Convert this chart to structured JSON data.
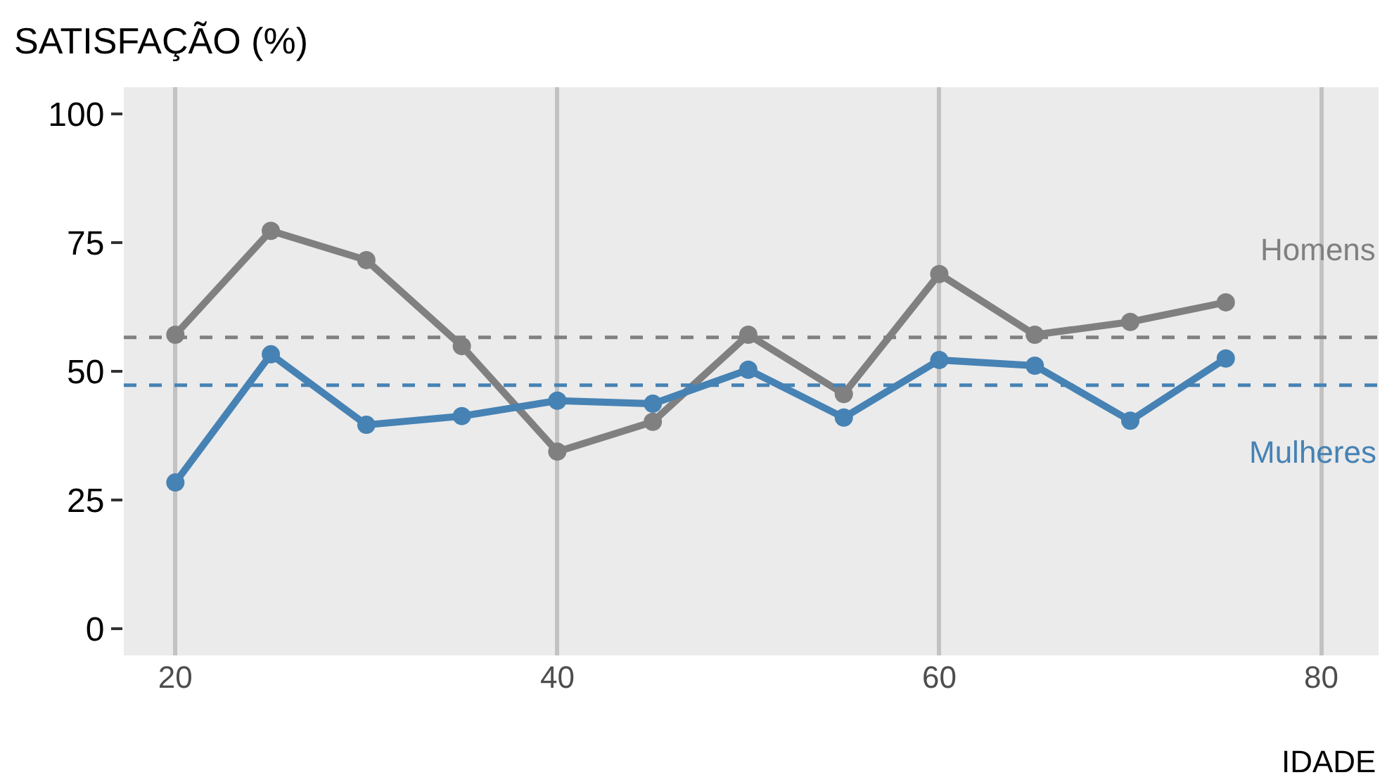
{
  "chart_data": {
    "type": "line",
    "ylabel": "SATISFAÇÃO (%)",
    "xlabel": "IDADE",
    "x": [
      20,
      25,
      30,
      35,
      40,
      45,
      50,
      55,
      60,
      65,
      70,
      75
    ],
    "series": [
      {
        "name": "Homens",
        "color": "#808080",
        "values": [
          57.1,
          77.3,
          71.6,
          54.9,
          34.4,
          40.2,
          57.1,
          45.6,
          68.9,
          57.1,
          59.6,
          63.4
        ]
      },
      {
        "name": "Mulheres",
        "color": "#4682b4",
        "values": [
          28.4,
          53.3,
          39.6,
          41.3,
          44.3,
          43.7,
          50.3,
          41.0,
          52.2,
          51.1,
          40.4,
          52.5
        ]
      }
    ],
    "ref_lines": [
      {
        "axis": "y",
        "value": 56.6,
        "color": "#808080",
        "line_style": "dashed"
      },
      {
        "axis": "y",
        "value": 47.3,
        "color": "#4682b4",
        "line_style": "dashed"
      }
    ],
    "xlim": [
      17.3,
      83
    ],
    "xticks": [
      20,
      40,
      60,
      80
    ],
    "ylim": [
      -5.2,
      105.2
    ],
    "yticks": [
      0,
      25,
      50,
      75,
      100
    ],
    "grid": "x",
    "marker": "circle",
    "line_style": "solid",
    "legend": false
  }
}
